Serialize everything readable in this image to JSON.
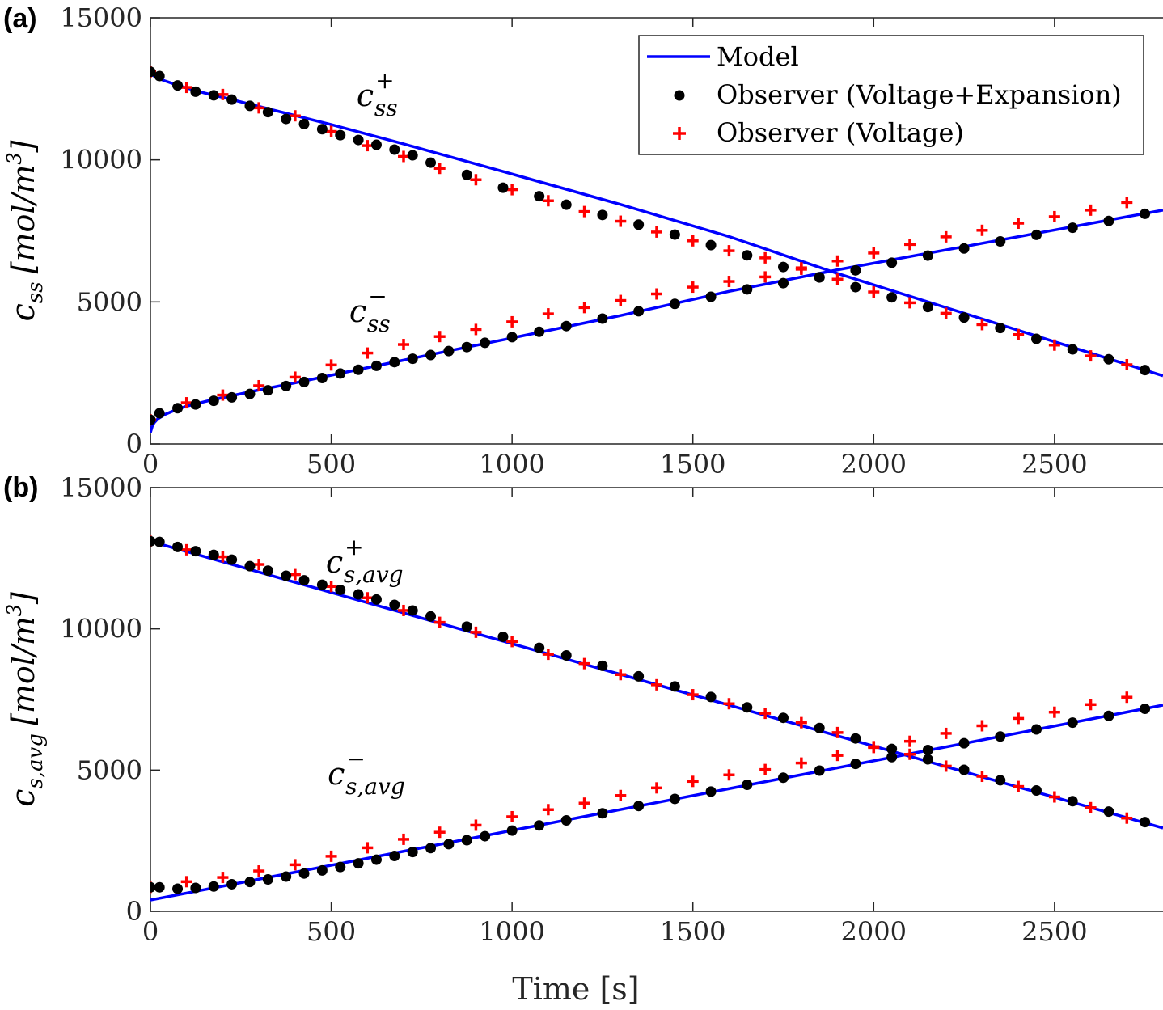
{
  "colors": {
    "model": "#0000ff",
    "observer_ve": "#000000",
    "observer_v": "#ff0000",
    "axis": "#262626"
  },
  "legend": {
    "model": "Model",
    "observer_ve": "Observer (Voltage+Expansion)",
    "observer_v": "Observer (Voltage)"
  },
  "chart_data": [
    {
      "type": "line",
      "panel_label": "(a)",
      "ylabel_symbol": "c",
      "ylabel_sub": "ss",
      "ylabel_unit": "[mol/m",
      "ylabel_unit_sup": "3",
      "ylabel_unit_close": "]",
      "xlim": [
        0,
        2800
      ],
      "ylim": [
        0,
        15000
      ],
      "xticks": [
        0,
        500,
        1000,
        1500,
        2000,
        2500
      ],
      "yticks": [
        0,
        5000,
        10000,
        15000
      ],
      "annotations": [
        {
          "base": "c",
          "sup": "+",
          "sub": "ss",
          "x": 570,
          "y": 11900
        },
        {
          "base": "c",
          "sup": "−",
          "sub": "ss",
          "x": 550,
          "y": 4300
        }
      ],
      "series": [
        {
          "name": "Model (positive)",
          "x": [
            0,
            5,
            10,
            20,
            40,
            70,
            100,
            150,
            200,
            300,
            400,
            500,
            700,
            1000,
            1300,
            1600,
            1900,
            2200,
            2500,
            2800
          ],
          "y": [
            13100,
            13000,
            12950,
            12880,
            12780,
            12650,
            12530,
            12350,
            12200,
            11880,
            11560,
            11240,
            10560,
            9500,
            8430,
            7300,
            6000,
            4800,
            3600,
            2400
          ]
        },
        {
          "name": "Model (negative)",
          "x": [
            0,
            5,
            10,
            20,
            40,
            70,
            100,
            150,
            200,
            300,
            400,
            500,
            700,
            1000,
            1300,
            1600,
            1900,
            2200,
            2500,
            2800
          ],
          "y": [
            400,
            620,
            740,
            880,
            1040,
            1200,
            1330,
            1490,
            1630,
            1900,
            2150,
            2420,
            2950,
            3730,
            4520,
            5370,
            6130,
            6830,
            7530,
            8230
          ]
        },
        {
          "name": "Observer VE (positive)",
          "x": [
            0,
            25,
            75,
            125,
            175,
            225,
            275,
            325,
            375,
            425,
            475,
            525,
            575,
            625,
            675,
            725,
            775,
            875,
            975,
            1075,
            1150,
            1250,
            1350,
            1450,
            1550,
            1650,
            1750,
            1850,
            1950,
            2050,
            2150,
            2250,
            2350,
            2450,
            2550,
            2650,
            2750
          ],
          "y": [
            13100,
            12950,
            12620,
            12400,
            12270,
            12120,
            11900,
            11680,
            11440,
            11260,
            11080,
            10870,
            10700,
            10530,
            10360,
            10160,
            9900,
            9470,
            9020,
            8720,
            8420,
            8060,
            7720,
            7370,
            7000,
            6640,
            6230,
            5860,
            5520,
            5160,
            4820,
            4450,
            4080,
            3700,
            3330,
            2980,
            2600
          ]
        },
        {
          "name": "Observer VE (negative)",
          "x": [
            0,
            25,
            75,
            125,
            175,
            225,
            275,
            325,
            375,
            425,
            475,
            525,
            575,
            625,
            675,
            725,
            775,
            825,
            875,
            925,
            1000,
            1075,
            1150,
            1250,
            1350,
            1450,
            1550,
            1650,
            1750,
            1850,
            1950,
            2050,
            2150,
            2250,
            2350,
            2450,
            2550,
            2650,
            2750
          ],
          "y": [
            850,
            1080,
            1260,
            1390,
            1520,
            1640,
            1760,
            1890,
            2040,
            2180,
            2320,
            2480,
            2610,
            2750,
            2880,
            3000,
            3130,
            3270,
            3410,
            3560,
            3760,
            3950,
            4150,
            4410,
            4670,
            4930,
            5180,
            5440,
            5660,
            5870,
            6110,
            6380,
            6630,
            6880,
            7130,
            7360,
            7610,
            7850,
            8100
          ]
        },
        {
          "name": "Observer V (positive)",
          "x": [
            0,
            100,
            200,
            300,
            400,
            500,
            600,
            700,
            800,
            900,
            1000,
            1100,
            1200,
            1300,
            1400,
            1500,
            1600,
            1700,
            1800,
            1900,
            2000,
            2100,
            2200,
            2300,
            2400,
            2500,
            2600,
            2700
          ],
          "y": [
            13100,
            12550,
            12300,
            11830,
            11550,
            11000,
            10500,
            10120,
            9700,
            9300,
            8950,
            8560,
            8180,
            7840,
            7460,
            7150,
            6800,
            6550,
            6150,
            5800,
            5350,
            4970,
            4600,
            4200,
            3850,
            3480,
            3100,
            2790
          ]
        },
        {
          "name": "Observer V (negative)",
          "x": [
            0,
            100,
            200,
            300,
            400,
            500,
            600,
            700,
            800,
            900,
            1000,
            1100,
            1200,
            1300,
            1400,
            1500,
            1600,
            1700,
            1800,
            1900,
            2000,
            2100,
            2200,
            2300,
            2400,
            2500,
            2600,
            2700
          ],
          "y": [
            850,
            1450,
            1720,
            2050,
            2350,
            2780,
            3200,
            3500,
            3780,
            4030,
            4300,
            4580,
            4800,
            5050,
            5280,
            5520,
            5720,
            5880,
            6200,
            6440,
            6720,
            7020,
            7290,
            7520,
            7770,
            8000,
            8230,
            8500
          ]
        }
      ]
    },
    {
      "type": "line",
      "panel_label": "(b)",
      "ylabel_symbol": "c",
      "ylabel_sub": "s,avg",
      "ylabel_unit": "[mol/m",
      "ylabel_unit_sup": "3",
      "ylabel_unit_close": "]",
      "xlabel": "Time [s]",
      "xlim": [
        0,
        2800
      ],
      "ylim": [
        0,
        15000
      ],
      "xticks": [
        0,
        500,
        1000,
        1500,
        2000,
        2500
      ],
      "yticks": [
        0,
        5000,
        10000,
        15000
      ],
      "annotations": [
        {
          "base": "c",
          "sup": "+",
          "sub": "s,avg",
          "x": 485,
          "y": 12000
        },
        {
          "base": "c",
          "sup": "−",
          "sub": "s,avg",
          "x": 490,
          "y": 4500
        }
      ],
      "series": [
        {
          "name": "Model (positive)",
          "x": [
            0,
            2800
          ],
          "y": [
            13100,
            2950
          ]
        },
        {
          "name": "Model (negative)",
          "x": [
            0,
            2800
          ],
          "y": [
            400,
            7300
          ]
        },
        {
          "name": "Observer VE (positive)",
          "x": [
            0,
            25,
            75,
            125,
            175,
            225,
            275,
            325,
            375,
            425,
            475,
            525,
            575,
            625,
            675,
            725,
            775,
            875,
            975,
            1075,
            1150,
            1250,
            1350,
            1450,
            1550,
            1650,
            1750,
            1850,
            1950,
            2050,
            2150,
            2250,
            2350,
            2450,
            2550,
            2650,
            2750
          ],
          "y": [
            13100,
            13080,
            12900,
            12750,
            12620,
            12450,
            12220,
            12060,
            11880,
            11720,
            11560,
            11380,
            11220,
            11040,
            10850,
            10650,
            10440,
            10080,
            9720,
            9330,
            9060,
            8690,
            8320,
            7960,
            7590,
            7220,
            6850,
            6490,
            6120,
            5750,
            5380,
            5010,
            4640,
            4280,
            3900,
            3530,
            3160
          ]
        },
        {
          "name": "Observer VE (negative)",
          "x": [
            0,
            25,
            75,
            125,
            175,
            225,
            275,
            325,
            375,
            425,
            475,
            525,
            575,
            625,
            675,
            725,
            775,
            825,
            875,
            925,
            1000,
            1075,
            1150,
            1250,
            1350,
            1450,
            1550,
            1650,
            1750,
            1850,
            1950,
            2050,
            2150,
            2250,
            2350,
            2450,
            2550,
            2650,
            2750
          ],
          "y": [
            850,
            850,
            800,
            830,
            880,
            960,
            1040,
            1130,
            1230,
            1340,
            1450,
            1570,
            1700,
            1830,
            1960,
            2100,
            2240,
            2380,
            2520,
            2660,
            2860,
            3040,
            3220,
            3470,
            3730,
            3980,
            4240,
            4480,
            4730,
            4980,
            5220,
            5460,
            5710,
            5950,
            6190,
            6440,
            6680,
            6920,
            7170
          ]
        },
        {
          "name": "Observer V (positive)",
          "x": [
            0,
            100,
            200,
            300,
            400,
            500,
            600,
            700,
            800,
            900,
            1000,
            1100,
            1200,
            1300,
            1400,
            1500,
            1600,
            1700,
            1800,
            1900,
            2000,
            2100,
            2200,
            2300,
            2400,
            2500,
            2600,
            2700
          ],
          "y": [
            13100,
            12800,
            12550,
            12280,
            11920,
            11500,
            11100,
            10650,
            10230,
            9880,
            9550,
            9100,
            8770,
            8380,
            8020,
            7670,
            7350,
            7010,
            6680,
            6330,
            5830,
            5560,
            5140,
            4780,
            4420,
            4050,
            3670,
            3300
          ]
        },
        {
          "name": "Observer V (negative)",
          "x": [
            0,
            100,
            200,
            300,
            400,
            500,
            600,
            700,
            800,
            900,
            1000,
            1100,
            1200,
            1300,
            1400,
            1500,
            1600,
            1700,
            1800,
            1900,
            2000,
            2100,
            2200,
            2300,
            2400,
            2500,
            2600,
            2700
          ],
          "y": [
            850,
            1050,
            1200,
            1430,
            1650,
            1950,
            2250,
            2550,
            2800,
            3050,
            3350,
            3600,
            3830,
            4100,
            4370,
            4600,
            4830,
            5020,
            5250,
            5520,
            5800,
            6020,
            6300,
            6570,
            6830,
            7050,
            7320,
            7580
          ]
        }
      ]
    }
  ]
}
